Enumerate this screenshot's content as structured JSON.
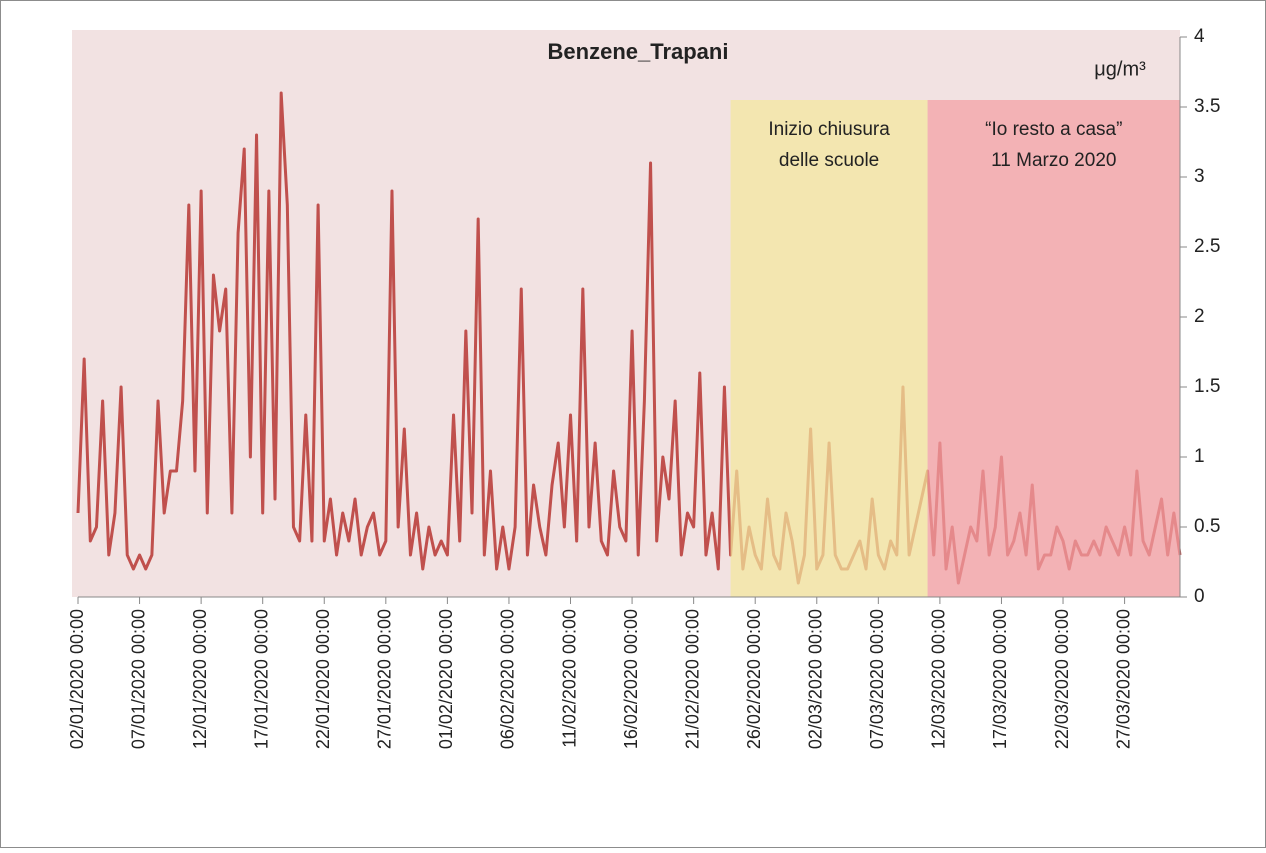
{
  "chart_data": {
    "type": "line",
    "title": "Benzene_Trapani",
    "unit": "μg/m³",
    "categories": [
      "02/01/2020 00:00",
      null,
      null,
      null,
      null,
      null,
      null,
      null,
      null,
      null,
      "07/01/2020 00:00",
      null,
      null,
      null,
      null,
      null,
      null,
      null,
      null,
      null,
      "12/01/2020 00:00",
      null,
      null,
      null,
      null,
      null,
      null,
      null,
      null,
      null,
      "17/01/2020 00:00",
      null,
      null,
      null,
      null,
      null,
      null,
      null,
      null,
      null,
      "22/01/2020 00:00",
      null,
      null,
      null,
      null,
      null,
      null,
      null,
      null,
      null,
      "27/01/2020 00:00",
      null,
      null,
      null,
      null,
      null,
      null,
      null,
      null,
      null,
      "01/02/2020 00:00",
      null,
      null,
      null,
      null,
      null,
      null,
      null,
      null,
      null,
      "06/02/2020 00:00",
      null,
      null,
      null,
      null,
      null,
      null,
      null,
      null,
      null,
      "11/02/2020 00:00",
      null,
      null,
      null,
      null,
      null,
      null,
      null,
      null,
      null,
      "16/02/2020 00:00",
      null,
      null,
      null,
      null,
      null,
      null,
      null,
      null,
      null,
      "21/02/2020 00:00",
      null,
      null,
      null,
      null,
      null,
      null,
      null,
      null,
      null,
      "26/02/2020 00:00",
      null,
      null,
      null,
      null,
      null,
      null,
      null,
      null,
      null,
      "02/03/2020 00:00",
      null,
      null,
      null,
      null,
      null,
      null,
      null,
      null,
      null,
      "07/03/2020 00:00",
      null,
      null,
      null,
      null,
      null,
      null,
      null,
      null,
      null,
      "12/03/2020 00:00",
      null,
      null,
      null,
      null,
      null,
      null,
      null,
      null,
      null,
      "17/03/2020 00:00",
      null,
      null,
      null,
      null,
      null,
      null,
      null,
      null,
      null,
      "22/03/2020 00:00",
      null,
      null,
      null,
      null,
      null,
      null,
      null,
      null,
      null,
      "27/03/2020 00:00",
      null,
      null,
      null,
      null,
      null,
      null,
      null,
      null,
      null
    ],
    "values": [
      0.6,
      1.7,
      0.4,
      0.5,
      1.4,
      0.3,
      0.6,
      1.5,
      0.3,
      0.2,
      0.3,
      0.2,
      0.3,
      1.4,
      0.6,
      0.9,
      0.9,
      1.4,
      2.8,
      0.9,
      2.9,
      0.6,
      2.3,
      1.9,
      2.2,
      0.6,
      2.6,
      3.2,
      1.0,
      3.3,
      0.6,
      2.9,
      0.7,
      3.6,
      2.8,
      0.5,
      0.4,
      1.3,
      0.4,
      2.8,
      0.4,
      0.7,
      0.3,
      0.6,
      0.4,
      0.7,
      0.3,
      0.5,
      0.6,
      0.3,
      0.4,
      2.9,
      0.5,
      1.2,
      0.3,
      0.6,
      0.2,
      0.5,
      0.3,
      0.4,
      0.3,
      1.3,
      0.4,
      1.9,
      0.6,
      2.7,
      0.3,
      0.9,
      0.2,
      0.5,
      0.2,
      0.5,
      2.2,
      0.3,
      0.8,
      0.5,
      0.3,
      0.8,
      1.1,
      0.5,
      1.3,
      0.4,
      2.2,
      0.5,
      1.1,
      0.4,
      0.3,
      0.9,
      0.5,
      0.4,
      1.9,
      0.3,
      1.4,
      3.1,
      0.4,
      1.0,
      0.7,
      1.4,
      0.3,
      0.6,
      0.5,
      1.6,
      0.3,
      0.6,
      0.2,
      1.5,
      0.3,
      0.9,
      0.2,
      0.5,
      0.3,
      0.2,
      0.7,
      0.3,
      0.2,
      0.6,
      0.4,
      0.1,
      0.3,
      1.2,
      0.2,
      0.3,
      1.1,
      0.3,
      0.2,
      0.2,
      0.3,
      0.4,
      0.2,
      0.7,
      0.3,
      0.2,
      0.4,
      0.3,
      1.5,
      0.3,
      0.5,
      0.7,
      0.9,
      0.3,
      1.1,
      0.2,
      0.5,
      0.1,
      0.3,
      0.5,
      0.4,
      0.9,
      0.3,
      0.5,
      1.0,
      0.3,
      0.4,
      0.6,
      0.3,
      0.8,
      0.2,
      0.3,
      0.3,
      0.5,
      0.4,
      0.2,
      0.4,
      0.3,
      0.3,
      0.4,
      0.3,
      0.5,
      0.4,
      0.3,
      0.5,
      0.3,
      0.9,
      0.4,
      0.3,
      0.5,
      0.7,
      0.3,
      0.6,
      0.3
    ],
    "color": "#c0504d",
    "ylim": [
      0,
      4
    ],
    "yticks": [
      0,
      0.5,
      1,
      1.5,
      2,
      2.5,
      3,
      3.5,
      4
    ],
    "bands": [
      {
        "from": 106,
        "to": 138,
        "color": "#f2e79c",
        "lines": [
          "Inizio chiusura",
          "delle scuole"
        ]
      },
      {
        "from": 138,
        "to": 179,
        "color": "#f2a0a4",
        "lines": [
          "“Io resto a casa”",
          "11 Marzo 2020"
        ]
      }
    ]
  }
}
